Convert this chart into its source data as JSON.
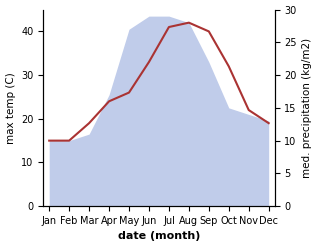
{
  "months": [
    "Jan",
    "Feb",
    "Mar",
    "Apr",
    "May",
    "Jun",
    "Jul",
    "Aug",
    "Sep",
    "Oct",
    "Nov",
    "Dec"
  ],
  "month_positions": [
    0,
    1,
    2,
    3,
    4,
    5,
    6,
    7,
    8,
    9,
    10,
    11
  ],
  "max_temp": [
    15,
    15,
    19,
    24,
    26,
    33,
    41,
    42,
    40,
    32,
    22,
    19
  ],
  "precipitation": [
    10,
    10,
    11,
    17,
    27,
    29,
    29,
    28,
    22,
    15,
    14,
    13
  ],
  "temp_color": "#aa3333",
  "precip_fill_color": "#c0ccea",
  "precip_line_color": "#c0ccea",
  "ylabel_left": "max temp (C)",
  "ylabel_right": "med. precipitation (kg/m2)",
  "xlabel": "date (month)",
  "ylim_left": [
    0,
    45
  ],
  "ylim_right": [
    0,
    30
  ],
  "yticks_left": [
    0,
    10,
    20,
    30,
    40
  ],
  "yticks_right": [
    0,
    5,
    10,
    15,
    20,
    25,
    30
  ],
  "bg_color": "#ffffff",
  "label_fontsize": 7.5,
  "tick_fontsize": 7,
  "xlabel_fontsize": 8,
  "xlabel_fontweight": "bold"
}
